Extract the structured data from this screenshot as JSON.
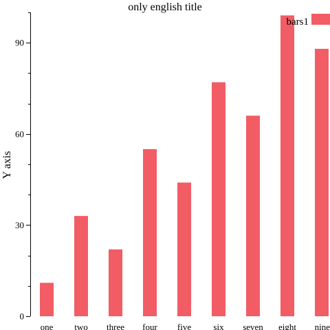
{
  "chart_data": {
    "type": "bar",
    "title": "only english title",
    "xlabel": "",
    "ylabel": "Y axis",
    "categories": [
      "one",
      "two",
      "three",
      "four",
      "five",
      "six",
      "seven",
      "eight",
      "nine"
    ],
    "series": [
      {
        "name": "bars1",
        "values": [
          11,
          33,
          22,
          55,
          44,
          77,
          66,
          99,
          88
        ]
      }
    ],
    "ylim": [
      0,
      100
    ],
    "yticks": [
      0,
      30,
      60,
      90
    ],
    "ytick_labels": [
      "0",
      "30",
      "60",
      "90"
    ],
    "y_minor_step": 10,
    "grid": false,
    "legend": "top-right",
    "colors": {
      "bars": "#f25c64"
    }
  }
}
